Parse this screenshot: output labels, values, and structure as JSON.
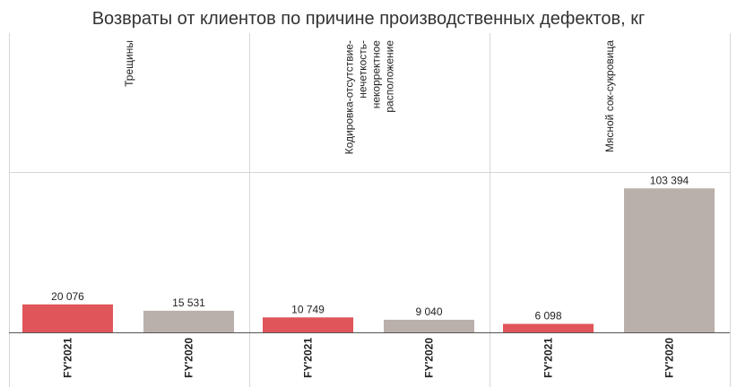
{
  "chart_data": {
    "type": "bar",
    "title": "Возвраты от клиентов по причине производственных дефектов, кг",
    "xlabel": "",
    "ylabel": "",
    "ylim": [
      0,
      110000
    ],
    "grid": false,
    "legend": "none",
    "categories": [
      "FY'2021",
      "FY'2020"
    ],
    "colors": {
      "FY'2021": "#e05559",
      "FY'2020": "#bab0ab"
    },
    "panels": [
      {
        "name_lines": [
          "Трещины"
        ],
        "values": [
          20076,
          15531
        ],
        "value_labels": [
          "20 076",
          "15 531"
        ]
      },
      {
        "name_lines": [
          "Кодировка-отсутствие-",
          "нечеткость-",
          "некорректное",
          "расположение"
        ],
        "values": [
          10749,
          9040
        ],
        "value_labels": [
          "10 749",
          "9 040"
        ]
      },
      {
        "name_lines": [
          "Мясной сок-сукровица"
        ],
        "values": [
          6098,
          103394
        ],
        "value_labels": [
          "6 098",
          "103 394"
        ]
      }
    ]
  }
}
